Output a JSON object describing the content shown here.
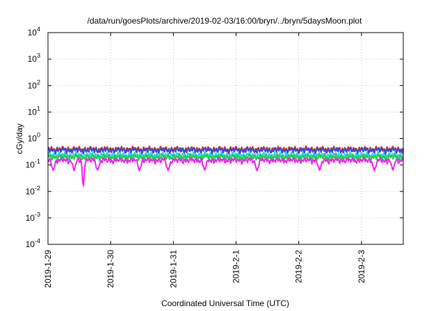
{
  "chart_data": {
    "type": "line",
    "title": "/data/run/goesPlots/archive/2019-02-03/16:00/bryn/../bryn/5daysMoon.plot",
    "xlabel": "Coordinated Universal Time (UTC)",
    "ylabel": "cGy/day",
    "yscale": "log",
    "ylim": [
      0.0001,
      10000
    ],
    "xlim": [
      "2019-01-29T00:00",
      "2019-02-03T16:00"
    ],
    "x_ticks": [
      "2019-1-29",
      "2019-1-30",
      "2019-1-31",
      "2019-2-1",
      "2019-2-2",
      "2019-2-3"
    ],
    "y_ticks": [
      {
        "base": "10",
        "exp": "4"
      },
      {
        "base": "10",
        "exp": "3"
      },
      {
        "base": "10",
        "exp": "2"
      },
      {
        "base": "10",
        "exp": "1"
      },
      {
        "base": "10",
        "exp": "0"
      },
      {
        "base": "10",
        "exp": "-1"
      },
      {
        "base": "10",
        "exp": "-2"
      },
      {
        "base": "10",
        "exp": "-3"
      },
      {
        "base": "10",
        "exp": "-4"
      }
    ],
    "grid": true,
    "legend": "none",
    "series": [
      {
        "color": "#e8201e",
        "base": 0.4,
        "dips": [],
        "dip_value": null
      },
      {
        "color": "#2a4fe0",
        "base": 0.36,
        "dips": [],
        "dip_value": null
      },
      {
        "color": "#22d8d8",
        "base": 0.24,
        "dips": [],
        "dip_value": null
      },
      {
        "color": "#2cc84a",
        "base": 0.2,
        "dips": [],
        "dip_value": null
      },
      {
        "color": "#ee22ee",
        "base": 0.15,
        "dips": [
          "2019-01-29T02:00",
          "2019-01-29T10:00",
          "2019-01-29T19:00",
          "2019-01-30T11:00",
          "2019-01-30T22:00",
          "2019-01-31T12:00",
          "2019-02-01T08:00",
          "2019-02-02T08:00",
          "2019-02-03T05:00",
          "2019-02-03T12:00"
        ],
        "dip_value": 0.06,
        "deep_dip": {
          "x": "2019-01-29T13:30",
          "y": 0.011
        }
      }
    ]
  }
}
